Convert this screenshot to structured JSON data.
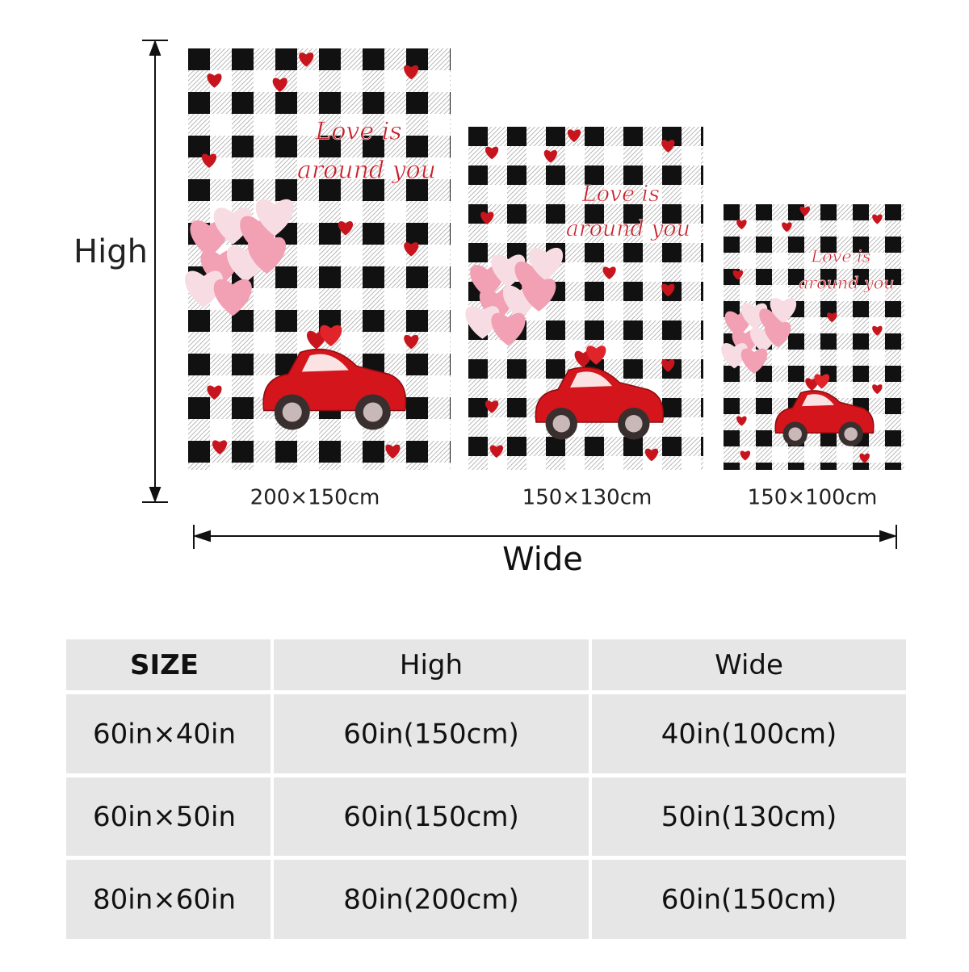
{
  "dimension_labels": {
    "height": "High",
    "width": "Wide"
  },
  "blankets": [
    {
      "size_label": "200×150cm",
      "text_lines": [
        "Love is",
        "around you"
      ]
    },
    {
      "size_label": "150×130cm",
      "text_lines": [
        "Love is",
        "around you"
      ]
    },
    {
      "size_label": "150×100cm",
      "text_lines": [
        "Love is",
        "around you"
      ]
    }
  ],
  "table": {
    "header": [
      "SIZE",
      "High",
      "Wide"
    ],
    "rows": [
      [
        "60in×40in",
        "60in(150cm)",
        "40in(100cm)"
      ],
      [
        "60in×50in",
        "60in(150cm)",
        "50in(130cm)"
      ],
      [
        "80in×60in",
        "80in(200cm)",
        "60in(150cm)"
      ]
    ]
  }
}
